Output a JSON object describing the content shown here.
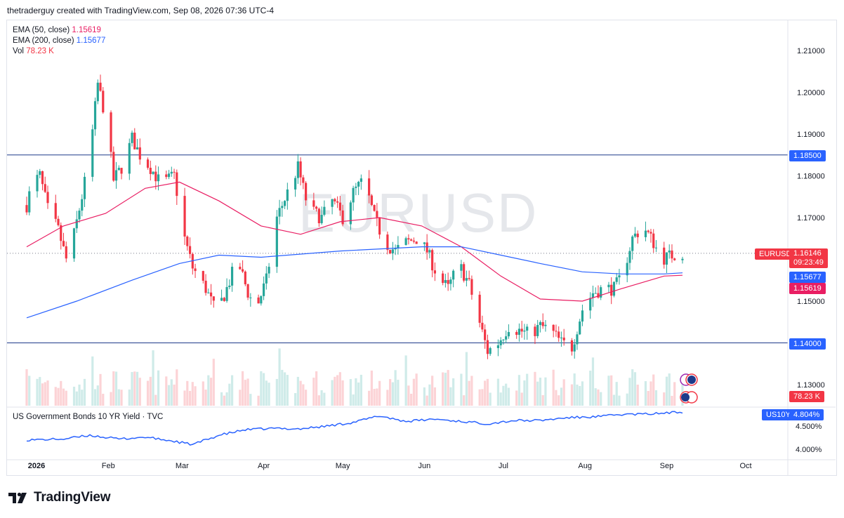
{
  "header": {
    "text": "thetraderguy created with TradingView.com, Sep 08, 2026 07:36 UTC-4"
  },
  "watermark": "EURUSD",
  "legend": {
    "ema50_label": "EMA (50, close)",
    "ema50_value": "1.15619",
    "ema200_label": "EMA (200, close)",
    "ema200_value": "1.15677",
    "vol_label": "Vol",
    "vol_value": "78.23 K"
  },
  "tags": {
    "level_1185": "1.18500",
    "level_1140": "1.14000",
    "symbol": "EURUSD",
    "last_price": "1.16146",
    "countdown": "09:23:49",
    "ema200": "1.15677",
    "ema50": "1.15619",
    "volume": "78.23 K",
    "bond_symbol": "US10Y",
    "bond_value": "4.804%"
  },
  "sub_pane": {
    "title": "US Government Bonds 10 YR Yield · TVC"
  },
  "footer": {
    "brand": "TradingView"
  },
  "colors": {
    "up": "#26a69a",
    "down": "#f23645",
    "ema50": "#e91e63",
    "ema200": "#2962ff",
    "bond": "#2962ff"
  },
  "chart_data": [
    {
      "type": "candlestick",
      "symbol": "EURUSD",
      "y_ticks": [
        "1.21000",
        "1.20000",
        "1.19000",
        "1.18000",
        "1.17000",
        "1.15000",
        "1.13000"
      ],
      "y_tick_values": [
        1.21,
        1.2,
        1.19,
        1.18,
        1.17,
        1.15,
        1.13
      ],
      "x_ticks": [
        "2026",
        "Feb",
        "Mar",
        "Apr",
        "May",
        "Jun",
        "Jul",
        "Aug",
        "Sep",
        "Oct"
      ],
      "horizontal_levels": [
        1.185,
        1.14
      ],
      "last_price": 1.16146,
      "anchors": [
        [
          "2026-01-01",
          1.173
        ],
        [
          "2026-01-03",
          1.178
        ],
        [
          "2026-01-06",
          1.18
        ],
        [
          "2026-01-09",
          1.172
        ],
        [
          "2026-01-13",
          1.167
        ],
        [
          "2026-01-16",
          1.16
        ],
        [
          "2026-01-19",
          1.166
        ],
        [
          "2026-01-22",
          1.175
        ],
        [
          "2026-01-25",
          1.185
        ],
        [
          "2026-01-28",
          1.202
        ],
        [
          "2026-01-31",
          1.194
        ],
        [
          "2026-02-03",
          1.179
        ],
        [
          "2026-02-07",
          1.183
        ],
        [
          "2026-02-10",
          1.189
        ],
        [
          "2026-02-13",
          1.185
        ],
        [
          "2026-02-17",
          1.182
        ],
        [
          "2026-02-21",
          1.178
        ],
        [
          "2026-02-26",
          1.18
        ],
        [
          "2026-03-02",
          1.165
        ],
        [
          "2026-03-05",
          1.158
        ],
        [
          "2026-03-10",
          1.153
        ],
        [
          "2026-03-14",
          1.147
        ],
        [
          "2026-03-18",
          1.153
        ],
        [
          "2026-03-22",
          1.16
        ],
        [
          "2026-03-26",
          1.152
        ],
        [
          "2026-03-29",
          1.148
        ],
        [
          "2026-04-02",
          1.155
        ],
        [
          "2026-04-06",
          1.17
        ],
        [
          "2026-04-10",
          1.176
        ],
        [
          "2026-04-14",
          1.182
        ],
        [
          "2026-04-18",
          1.172
        ],
        [
          "2026-04-23",
          1.17
        ],
        [
          "2026-04-27",
          1.174
        ],
        [
          "2026-05-01",
          1.17
        ],
        [
          "2026-05-05",
          1.176
        ],
        [
          "2026-05-09",
          1.179
        ],
        [
          "2026-05-13",
          1.17
        ],
        [
          "2026-05-17",
          1.164
        ],
        [
          "2026-05-21",
          1.162
        ],
        [
          "2026-05-25",
          1.164
        ],
        [
          "2026-05-29",
          1.165
        ],
        [
          "2026-06-02",
          1.162
        ],
        [
          "2026-06-06",
          1.156
        ],
        [
          "2026-06-10",
          1.153
        ],
        [
          "2026-06-14",
          1.159
        ],
        [
          "2026-06-18",
          1.154
        ],
        [
          "2026-06-21",
          1.147
        ],
        [
          "2026-06-25",
          1.138
        ],
        [
          "2026-06-29",
          1.14
        ],
        [
          "2026-07-03",
          1.144
        ],
        [
          "2026-07-07",
          1.143
        ],
        [
          "2026-07-11",
          1.142
        ],
        [
          "2026-07-15",
          1.144
        ],
        [
          "2026-07-19",
          1.143
        ],
        [
          "2026-07-23",
          1.14
        ],
        [
          "2026-07-27",
          1.139
        ],
        [
          "2026-07-31",
          1.148
        ],
        [
          "2026-08-04",
          1.152
        ],
        [
          "2026-08-08",
          1.153
        ],
        [
          "2026-08-12",
          1.153
        ],
        [
          "2026-08-15",
          1.156
        ],
        [
          "2026-08-19",
          1.165
        ],
        [
          "2026-08-23",
          1.168
        ],
        [
          "2026-08-27",
          1.164
        ],
        [
          "2026-08-30",
          1.16
        ],
        [
          "2026-09-03",
          1.161
        ],
        [
          "2026-09-07",
          1.16146
        ]
      ],
      "ema50_path": [
        [
          "2026-01-01",
          1.163
        ],
        [
          "2026-01-15",
          1.168
        ],
        [
          "2026-01-31",
          1.171
        ],
        [
          "2026-02-15",
          1.177
        ],
        [
          "2026-02-28",
          1.1785
        ],
        [
          "2026-03-15",
          1.174
        ],
        [
          "2026-03-31",
          1.168
        ],
        [
          "2026-04-15",
          1.166
        ],
        [
          "2026-04-30",
          1.169
        ],
        [
          "2026-05-15",
          1.17
        ],
        [
          "2026-05-31",
          1.168
        ],
        [
          "2026-06-15",
          1.163
        ],
        [
          "2026-06-30",
          1.156
        ],
        [
          "2026-07-15",
          1.1505
        ],
        [
          "2026-07-31",
          1.15
        ],
        [
          "2026-08-15",
          1.153
        ],
        [
          "2026-08-31",
          1.156
        ],
        [
          "2026-09-07",
          1.15619
        ]
      ],
      "ema200_path": [
        [
          "2026-01-01",
          1.146
        ],
        [
          "2026-01-20",
          1.15
        ],
        [
          "2026-02-10",
          1.155
        ],
        [
          "2026-02-28",
          1.159
        ],
        [
          "2026-03-15",
          1.161
        ],
        [
          "2026-03-31",
          1.1605
        ],
        [
          "2026-04-30",
          1.162
        ],
        [
          "2026-05-31",
          1.163
        ],
        [
          "2026-06-15",
          1.163
        ],
        [
          "2026-06-30",
          1.161
        ],
        [
          "2026-07-15",
          1.159
        ],
        [
          "2026-07-31",
          1.157
        ],
        [
          "2026-08-15",
          1.1565
        ],
        [
          "2026-08-31",
          1.1565
        ],
        [
          "2026-09-07",
          1.15677
        ]
      ]
    },
    {
      "type": "line",
      "symbol": "US10Y",
      "title": "US Government Bonds 10 YR Yield · TVC",
      "y_ticks": [
        "4.500%",
        "4.000%"
      ],
      "y_tick_values": [
        4.5,
        4.0
      ],
      "last_value": 4.804,
      "x": [
        "2026-01-01",
        "2026-01-15",
        "2026-01-25",
        "2026-02-05",
        "2026-02-15",
        "2026-02-25",
        "2026-03-05",
        "2026-03-15",
        "2026-03-25",
        "2026-04-05",
        "2026-04-15",
        "2026-04-25",
        "2026-05-05",
        "2026-05-15",
        "2026-05-25",
        "2026-06-05",
        "2026-06-15",
        "2026-06-25",
        "2026-07-05",
        "2026-07-15",
        "2026-07-25",
        "2026-08-05",
        "2026-08-15",
        "2026-08-25",
        "2026-09-07"
      ],
      "values": [
        4.2,
        4.22,
        4.3,
        4.22,
        4.26,
        4.18,
        4.1,
        4.3,
        4.42,
        4.45,
        4.44,
        4.5,
        4.58,
        4.72,
        4.6,
        4.65,
        4.6,
        4.55,
        4.62,
        4.62,
        4.68,
        4.7,
        4.75,
        4.76,
        4.804
      ]
    }
  ]
}
